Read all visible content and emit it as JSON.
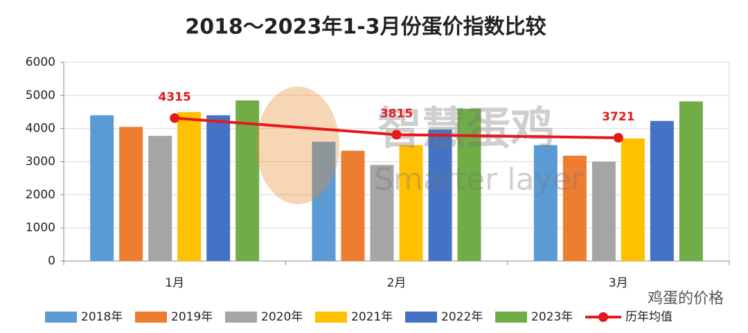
{
  "chart_data": {
    "type": "bar",
    "title": "2018～2023年1-3月份蛋价指数比较",
    "categories": [
      "1月",
      "2月",
      "3月"
    ],
    "series": [
      {
        "name": "2018年",
        "color": "#5b9bd5",
        "values": [
          4400,
          3600,
          3500
        ]
      },
      {
        "name": "2019年",
        "color": "#ed7d31",
        "values": [
          4050,
          3330,
          3180
        ]
      },
      {
        "name": "2020年",
        "color": "#a5a5a5",
        "values": [
          3780,
          2900,
          3000
        ]
      },
      {
        "name": "2021年",
        "color": "#ffc000",
        "values": [
          4500,
          3500,
          3700
        ]
      },
      {
        "name": "2022年",
        "color": "#4472c4",
        "values": [
          4400,
          3970,
          4230
        ]
      },
      {
        "name": "2023年",
        "color": "#70ad47",
        "values": [
          4850,
          4600,
          4820
        ]
      }
    ],
    "line": {
      "name": "历年均值",
      "color": "#e5191c",
      "values": [
        4315,
        3815,
        3721
      ]
    },
    "ylim": [
      0,
      6000
    ],
    "yticks": [
      0,
      1000,
      2000,
      3000,
      4000,
      5000,
      6000
    ],
    "grid": true,
    "watermark": "智慧蛋鸡",
    "watermark_en": "Smarter layer",
    "source_tag": "鸡蛋的价格"
  }
}
